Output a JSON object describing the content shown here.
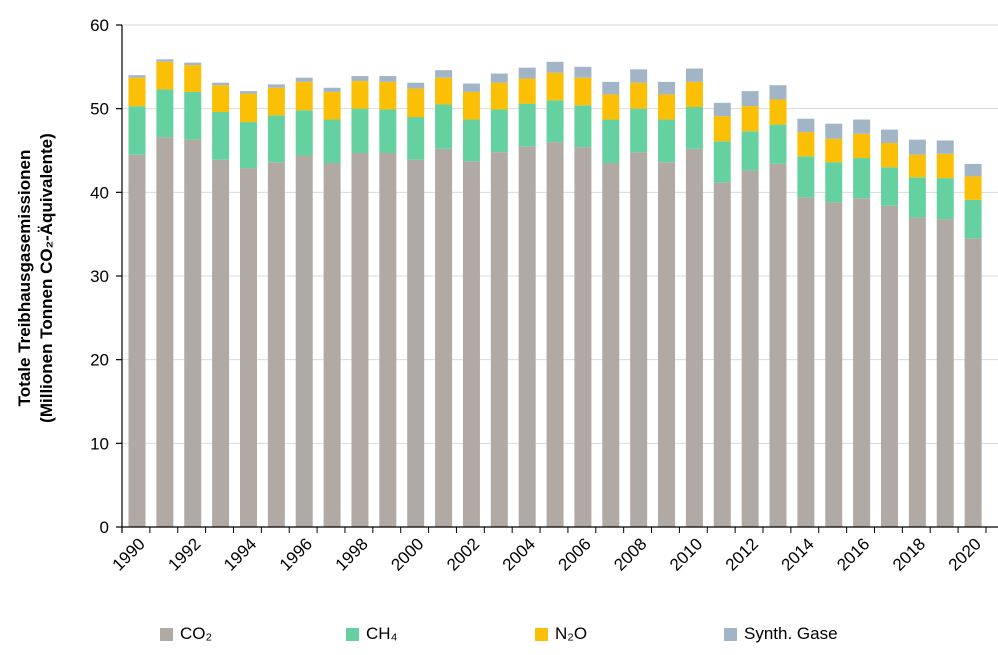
{
  "chart_data": {
    "type": "bar",
    "stacked": true,
    "ylabel_line1": "Totale Treibhausgasemissionen",
    "ylabel_line2": "(Millionen Tonnen CO₂-Äquivalente)",
    "ylim": [
      0,
      60
    ],
    "yticks": [
      "0",
      "10",
      "20",
      "30",
      "40",
      "50",
      "60"
    ],
    "xtick_labels": [
      "1990",
      "1992",
      "1994",
      "1996",
      "1998",
      "2000",
      "2002",
      "2004",
      "2006",
      "2008",
      "2010",
      "2012",
      "2014",
      "2016",
      "2018",
      "2020"
    ],
    "years": [
      1990,
      1991,
      1992,
      1993,
      1994,
      1995,
      1996,
      1997,
      1998,
      1999,
      2000,
      2001,
      2002,
      2003,
      2004,
      2005,
      2006,
      2007,
      2008,
      2009,
      2010,
      2011,
      2012,
      2013,
      2014,
      2015,
      2016,
      2017,
      2018,
      2019,
      2020
    ],
    "grid": true,
    "legend_position": "bottom",
    "series": [
      {
        "name": "CO₂",
        "color": "#b1a9a3",
        "values": [
          44.5,
          46.6,
          46.3,
          43.9,
          42.9,
          43.6,
          44.4,
          43.5,
          44.7,
          44.7,
          43.9,
          45.2,
          43.7,
          44.8,
          45.5,
          46.0,
          45.4,
          43.5,
          44.8,
          43.6,
          45.2,
          41.2,
          42.6,
          43.4,
          39.4,
          38.8,
          39.3,
          38.4,
          37.0,
          36.8,
          34.5
        ]
      },
      {
        "name": "CH₄",
        "color": "#66d1a0",
        "values": [
          5.8,
          5.7,
          5.7,
          5.7,
          5.5,
          5.6,
          5.4,
          5.2,
          5.3,
          5.2,
          5.1,
          5.3,
          5.0,
          5.1,
          5.1,
          5.0,
          5.0,
          5.2,
          5.2,
          5.1,
          5.0,
          4.9,
          4.7,
          4.7,
          4.9,
          4.8,
          4.8,
          4.6,
          4.8,
          4.9,
          4.6
        ]
      },
      {
        "name": "N₂O",
        "color": "#fbbf05",
        "values": [
          3.4,
          3.3,
          3.2,
          3.2,
          3.4,
          3.3,
          3.4,
          3.3,
          3.3,
          3.3,
          3.4,
          3.2,
          3.3,
          3.2,
          3.0,
          3.3,
          3.3,
          3.0,
          3.1,
          3.0,
          3.0,
          3.0,
          3.0,
          3.0,
          2.9,
          2.8,
          2.9,
          2.9,
          2.7,
          2.9,
          2.8
        ]
      },
      {
        "name": "Synth. Gase",
        "color": "#a2b5c6",
        "values": [
          0.3,
          0.3,
          0.3,
          0.3,
          0.3,
          0.4,
          0.5,
          0.5,
          0.6,
          0.7,
          0.7,
          0.9,
          1.0,
          1.1,
          1.3,
          1.3,
          1.3,
          1.5,
          1.6,
          1.5,
          1.6,
          1.6,
          1.8,
          1.7,
          1.6,
          1.8,
          1.7,
          1.6,
          1.8,
          1.6,
          1.5
        ]
      }
    ]
  }
}
